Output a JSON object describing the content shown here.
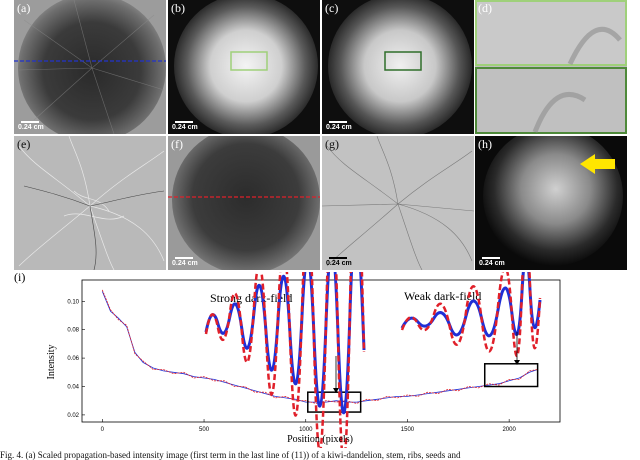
{
  "panels": [
    {
      "label": "(a)",
      "scale": "0.24 cm"
    },
    {
      "label": "(b)",
      "scale": "0.24 cm"
    },
    {
      "label": "(c)",
      "scale": "0.24 cm"
    },
    {
      "label": "(d)"
    },
    {
      "label": "(e)"
    },
    {
      "label": "(f)",
      "scale": "0.24 cm"
    },
    {
      "label": "(g)",
      "scale": "0.24 cm"
    },
    {
      "label": "(h)",
      "scale": "0.24 cm"
    }
  ],
  "plot": {
    "label": "(i)",
    "annotations": {
      "strong": "Strong dark-field",
      "weak": "Weak dark-field"
    }
  },
  "colors": {
    "blue_line": "#1f2fd6",
    "red_dashed": "#e0202a",
    "green_box": "#9fd07a",
    "dark_green_box": "#2f6e2a",
    "arrow": "#ffe600",
    "blue_dash": "#2233cc"
  },
  "chart_data": {
    "type": "line",
    "title": "",
    "xlabel": "Position (pixels)",
    "ylabel": "Intensity",
    "xlim": [
      -100,
      2250
    ],
    "ylim": [
      0.015,
      0.115
    ],
    "xticks": [
      0,
      500,
      1000,
      1500,
      2000
    ],
    "yticks": [
      0.02,
      0.04,
      0.06,
      0.08,
      0.1
    ],
    "ytick_labels": [
      "0.02",
      "0.04",
      "0.06",
      "0.08",
      "0.10"
    ],
    "series": [
      {
        "color": "blue",
        "style": "solid",
        "x": [
          0,
          40,
          80,
          120,
          160,
          200,
          250,
          300,
          350,
          400,
          450,
          500,
          550,
          600,
          650,
          700,
          750,
          800,
          850,
          900,
          950,
          1000,
          1050,
          1100,
          1150,
          1200,
          1250,
          1300,
          1350,
          1400,
          1450,
          1500,
          1550,
          1600,
          1650,
          1700,
          1750,
          1800,
          1850,
          1900,
          1950,
          2000,
          2050,
          2100,
          2140
        ],
        "y": [
          0.107,
          0.093,
          0.088,
          0.082,
          0.064,
          0.057,
          0.053,
          0.051,
          0.05,
          0.049,
          0.047,
          0.046,
          0.045,
          0.043,
          0.041,
          0.039,
          0.037,
          0.035,
          0.033,
          0.032,
          0.031,
          0.029,
          0.029,
          0.029,
          0.03,
          0.029,
          0.029,
          0.03,
          0.031,
          0.032,
          0.033,
          0.033,
          0.034,
          0.035,
          0.036,
          0.037,
          0.038,
          0.039,
          0.04,
          0.041,
          0.042,
          0.044,
          0.046,
          0.05,
          0.052
        ]
      },
      {
        "color": "red",
        "style": "dashed",
        "x": [
          0,
          40,
          80,
          120,
          160,
          200,
          250,
          300,
          350,
          400,
          450,
          500,
          550,
          600,
          650,
          700,
          750,
          800,
          850,
          900,
          950,
          1000,
          1050,
          1100,
          1150,
          1200,
          1250,
          1300,
          1350,
          1400,
          1450,
          1500,
          1550,
          1600,
          1650,
          1700,
          1750,
          1800,
          1850,
          1900,
          1950,
          2000,
          2050,
          2100,
          2140
        ],
        "y": [
          0.108,
          0.094,
          0.087,
          0.083,
          0.063,
          0.058,
          0.052,
          0.052,
          0.049,
          0.05,
          0.046,
          0.047,
          0.044,
          0.044,
          0.04,
          0.04,
          0.036,
          0.036,
          0.032,
          0.033,
          0.03,
          0.03,
          0.028,
          0.03,
          0.029,
          0.03,
          0.028,
          0.031,
          0.03,
          0.033,
          0.032,
          0.034,
          0.033,
          0.036,
          0.035,
          0.038,
          0.037,
          0.04,
          0.039,
          0.042,
          0.041,
          0.045,
          0.045,
          0.051,
          0.052
        ]
      }
    ],
    "boxes": [
      {
        "x": [
          1010,
          1270
        ],
        "y": [
          0.022,
          0.036
        ]
      },
      {
        "x": [
          1880,
          2140
        ],
        "y": [
          0.04,
          0.056
        ]
      }
    ]
  },
  "caption": "Fig. 4. (a) Scaled propagation-based intensity image (first term in the last line of (11)) of a kiwi-dandelion, stem, ribs, seeds and"
}
